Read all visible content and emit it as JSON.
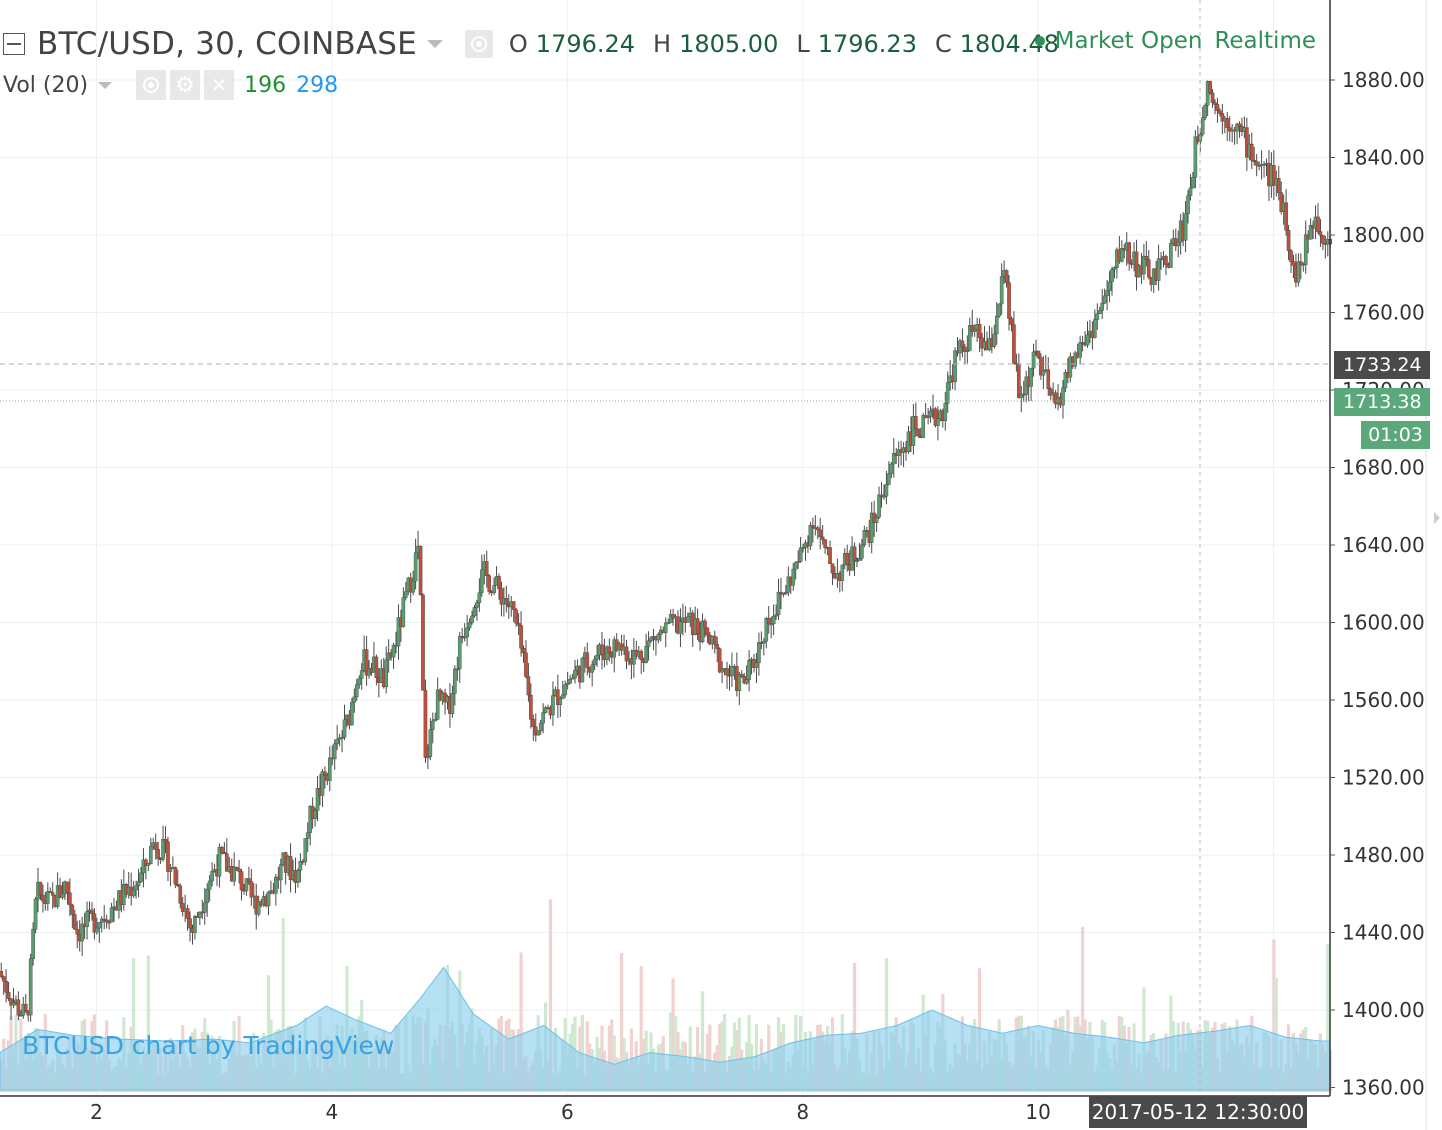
{
  "header": {
    "symbol_title": "BTC/USD, 30, COINBASE",
    "ohlc": [
      {
        "label": "O",
        "value": "1796.24"
      },
      {
        "label": "H",
        "value": "1805.00"
      },
      {
        "label": "L",
        "value": "1796.23"
      },
      {
        "label": "C",
        "value": "1804.48"
      }
    ],
    "market_status": "Market Open",
    "feed": "Realtime"
  },
  "volume_indicator": {
    "label": "Vol (20)",
    "value_1": "196",
    "value_2": "298"
  },
  "watermark": "BTCUSD chart by TradingView",
  "price_tags": {
    "last_price": "1733.24",
    "current_price": "1713.38",
    "countdown": "01:03"
  },
  "crosshair_time_label": "2017-05-12 12:30:00",
  "colors": {
    "up_candle": "#5a9e6f",
    "down_candle": "#c0503a",
    "volume_area": "#8fd0ee",
    "volume_up": "#cfe8d0",
    "volume_down": "#f0d3d0",
    "grid": "#eef0f2",
    "current_line": "#7dbb95"
  },
  "chart_data": {
    "type": "candlestick",
    "title": "BTC/USD, 30, COINBASE",
    "interval_minutes": 30,
    "y_axis": {
      "side": "right",
      "ticks": [
        "1880.00",
        "1840.00",
        "1800.00",
        "1760.00",
        "1720.00",
        "1680.00",
        "1640.00",
        "1600.00",
        "1560.00",
        "1520.00",
        "1480.00",
        "1440.00",
        "1400.00",
        "1360.00"
      ],
      "ylim": [
        1360,
        1900
      ]
    },
    "x_axis": {
      "ticks": [
        "2",
        "4",
        "6",
        "8",
        "10",
        "12"
      ],
      "xlim_days": [
        1.18,
        12.48
      ]
    },
    "grid": true,
    "price_path": [
      [
        1.18,
        1420
      ],
      [
        1.3,
        1405
      ],
      [
        1.42,
        1395
      ],
      [
        1.5,
        1460
      ],
      [
        1.62,
        1455
      ],
      [
        1.75,
        1465
      ],
      [
        1.85,
        1440
      ],
      [
        1.95,
        1445
      ],
      [
        2.1,
        1450
      ],
      [
        2.25,
        1460
      ],
      [
        2.4,
        1470
      ],
      [
        2.5,
        1488
      ],
      [
        2.62,
        1478
      ],
      [
        2.75,
        1455
      ],
      [
        2.82,
        1440
      ],
      [
        2.95,
        1465
      ],
      [
        3.05,
        1478
      ],
      [
        3.2,
        1470
      ],
      [
        3.35,
        1455
      ],
      [
        3.5,
        1462
      ],
      [
        3.6,
        1475
      ],
      [
        3.72,
        1470
      ],
      [
        3.85,
        1505
      ],
      [
        3.95,
        1520
      ],
      [
        4.05,
        1535
      ],
      [
        4.15,
        1550
      ],
      [
        4.25,
        1580
      ],
      [
        4.35,
        1578
      ],
      [
        4.45,
        1570
      ],
      [
        4.55,
        1590
      ],
      [
        4.65,
        1615
      ],
      [
        4.75,
        1640
      ],
      [
        4.8,
        1525
      ],
      [
        4.9,
        1560
      ],
      [
        5.0,
        1555
      ],
      [
        5.1,
        1590
      ],
      [
        5.2,
        1610
      ],
      [
        5.3,
        1625
      ],
      [
        5.45,
        1615
      ],
      [
        5.55,
        1605
      ],
      [
        5.62,
        1585
      ],
      [
        5.72,
        1545
      ],
      [
        5.85,
        1555
      ],
      [
        5.95,
        1565
      ],
      [
        6.05,
        1572
      ],
      [
        6.15,
        1578
      ],
      [
        6.3,
        1585
      ],
      [
        6.45,
        1588
      ],
      [
        6.6,
        1582
      ],
      [
        6.75,
        1592
      ],
      [
        6.9,
        1598
      ],
      [
        7.05,
        1600
      ],
      [
        7.2,
        1592
      ],
      [
        7.35,
        1575
      ],
      [
        7.5,
        1568
      ],
      [
        7.6,
        1580
      ],
      [
        7.7,
        1600
      ],
      [
        7.8,
        1610
      ],
      [
        7.9,
        1622
      ],
      [
        8.0,
        1635
      ],
      [
        8.1,
        1655
      ],
      [
        8.2,
        1635
      ],
      [
        8.3,
        1625
      ],
      [
        8.45,
        1635
      ],
      [
        8.6,
        1650
      ],
      [
        8.75,
        1680
      ],
      [
        8.85,
        1690
      ],
      [
        8.95,
        1700
      ],
      [
        9.05,
        1700
      ],
      [
        9.2,
        1710
      ],
      [
        9.3,
        1735
      ],
      [
        9.45,
        1750
      ],
      [
        9.6,
        1740
      ],
      [
        9.72,
        1780
      ],
      [
        9.85,
        1715
      ],
      [
        10.0,
        1738
      ],
      [
        10.15,
        1710
      ],
      [
        10.3,
        1735
      ],
      [
        10.45,
        1750
      ],
      [
        10.6,
        1770
      ],
      [
        10.72,
        1795
      ],
      [
        10.85,
        1785
      ],
      [
        11.0,
        1778
      ],
      [
        11.12,
        1790
      ],
      [
        11.25,
        1805
      ],
      [
        11.35,
        1845
      ],
      [
        11.45,
        1880
      ],
      [
        11.55,
        1862
      ],
      [
        11.68,
        1858
      ],
      [
        11.8,
        1845
      ],
      [
        11.9,
        1835
      ],
      [
        12.0,
        1830
      ],
      [
        12.1,
        1815
      ],
      [
        12.18,
        1780
      ],
      [
        12.25,
        1785
      ],
      [
        12.35,
        1810
      ],
      [
        12.45,
        1800
      ]
    ],
    "volume_ma": [
      [
        1.18,
        1378
      ],
      [
        1.5,
        1390
      ],
      [
        1.8,
        1387
      ],
      [
        2.2,
        1385
      ],
      [
        2.6,
        1384
      ],
      [
        3.0,
        1385
      ],
      [
        3.3,
        1383
      ],
      [
        3.7,
        1392
      ],
      [
        3.95,
        1402
      ],
      [
        4.2,
        1395
      ],
      [
        4.5,
        1388
      ],
      [
        4.75,
        1406
      ],
      [
        4.95,
        1422
      ],
      [
        5.2,
        1398
      ],
      [
        5.5,
        1385
      ],
      [
        5.8,
        1392
      ],
      [
        6.1,
        1378
      ],
      [
        6.4,
        1372
      ],
      [
        6.7,
        1378
      ],
      [
        7.0,
        1376
      ],
      [
        7.3,
        1373
      ],
      [
        7.6,
        1376
      ],
      [
        7.9,
        1383
      ],
      [
        8.2,
        1387
      ],
      [
        8.5,
        1388
      ],
      [
        8.8,
        1392
      ],
      [
        9.1,
        1400
      ],
      [
        9.4,
        1392
      ],
      [
        9.7,
        1388
      ],
      [
        10.0,
        1392
      ],
      [
        10.3,
        1388
      ],
      [
        10.6,
        1386
      ],
      [
        10.9,
        1383
      ],
      [
        11.2,
        1387
      ],
      [
        11.5,
        1389
      ],
      [
        11.8,
        1392
      ],
      [
        12.1,
        1386
      ],
      [
        12.4,
        1384
      ],
      [
        12.48,
        1384
      ]
    ]
  }
}
